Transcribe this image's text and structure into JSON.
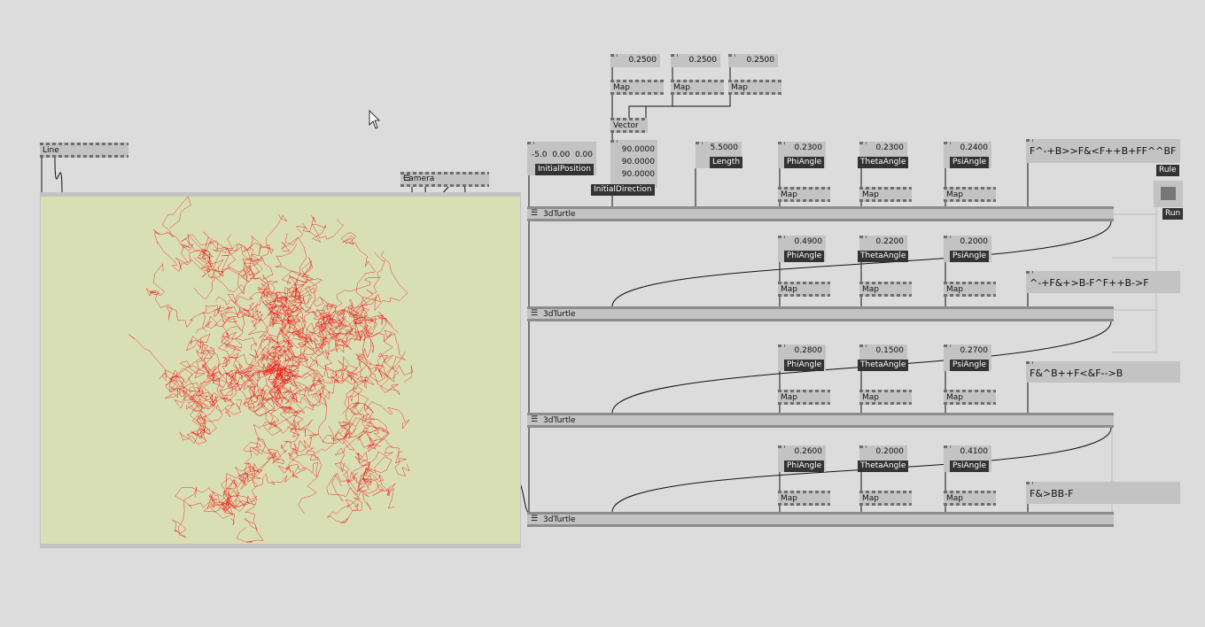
{
  "top_values": [
    {
      "value": "0.2500",
      "node": "Map"
    },
    {
      "value": "0.2500",
      "node": "Map"
    },
    {
      "value": "0.2500",
      "node": "Map"
    }
  ],
  "vector": "Vector",
  "line": "Line",
  "camera": "Camera",
  "initial_position": {
    "value": "-5.0  0.00  0.00",
    "label": "InitialPosition"
  },
  "initial_direction": {
    "values": [
      "90.0000",
      "90.0000",
      "90.0000"
    ],
    "label": "InitialDirection"
  },
  "length": {
    "value": "5.5000",
    "label": "Length"
  },
  "rule_label": "Rule",
  "run_label": "Run",
  "turtles": [
    {
      "name": "3dTurtle",
      "rule": "F^-+B>>F&<F++B+FF^^BF",
      "params": [
        {
          "value": "0.2300",
          "label": "PhiAngle",
          "map": "Map"
        },
        {
          "value": "0.2300",
          "label": "ThetaAngle",
          "map": "Map"
        },
        {
          "value": "0.2400",
          "label": "PsiAngle",
          "map": "Map"
        }
      ]
    },
    {
      "name": "3dTurtle",
      "rule": "^-+F&+>B-F^F++B->F",
      "params": [
        {
          "value": "0.4900",
          "label": "PhiAngle",
          "map": "Map"
        },
        {
          "value": "0.2200",
          "label": "ThetaAngle",
          "map": "Map"
        },
        {
          "value": "0.2000",
          "label": "PsiAngle",
          "map": "Map"
        }
      ]
    },
    {
      "name": "3dTurtle",
      "rule": "F&^B++F<&F-->B",
      "params": [
        {
          "value": "0.2800",
          "label": "PhiAngle",
          "map": "Map"
        },
        {
          "value": "0.1500",
          "label": "ThetaAngle",
          "map": "Map"
        },
        {
          "value": "0.2700",
          "label": "PsiAngle",
          "map": "Map"
        }
      ]
    },
    {
      "name": "3dTurtle",
      "rule": "F&>BB-F",
      "params": [
        {
          "value": "0.2600",
          "label": "PhiAngle",
          "map": "Map"
        },
        {
          "value": "0.2000",
          "label": "ThetaAngle",
          "map": "Map"
        },
        {
          "value": "0.4100",
          "label": "PsiAngle",
          "map": "Map"
        }
      ]
    }
  ]
}
